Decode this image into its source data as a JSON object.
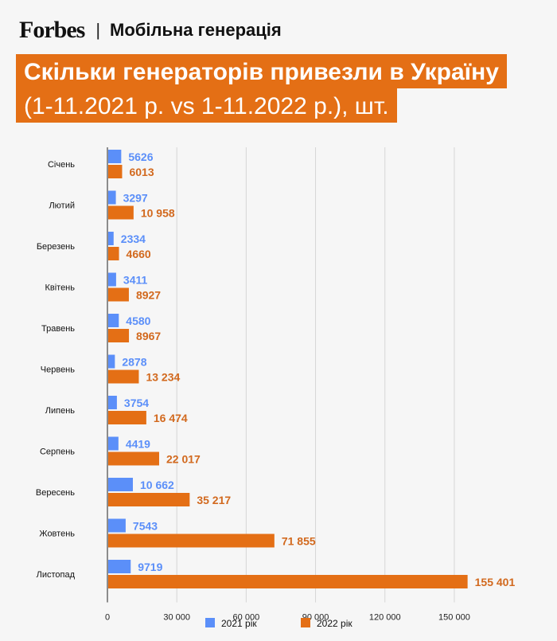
{
  "header": {
    "logo": "Forbes",
    "separator": "|",
    "section": "Мобільна генерація"
  },
  "title": {
    "line1": "Скільки генераторів привезли в Україну",
    "line2": "(1-11.2021 р. vs 1-11.2022 р.), шт."
  },
  "colors": {
    "s2021": "#5b8ff9",
    "s2022": "#e46f15",
    "label2021": "#5b8ff9",
    "label2022": "#d2691e",
    "grid": "#d5d5d5"
  },
  "chart_data": {
    "type": "bar",
    "orientation": "horizontal",
    "title": "Скільки генераторів привезли в Україну (1-11.2021 р. vs 1-11.2022 р.), шт.",
    "categories": [
      "Січень",
      "Лютий",
      "Березень",
      "Квітень",
      "Травень",
      "Червень",
      "Липень",
      "Серпень",
      "Вересень",
      "Жовтень",
      "Листопад"
    ],
    "series": [
      {
        "name": "2021 рік",
        "values": [
          5626,
          3297,
          2334,
          3411,
          4580,
          2878,
          3754,
          4419,
          10662,
          7543,
          9719
        ],
        "labels": [
          "5626",
          "3297",
          "2334",
          "3411",
          "4580",
          "2878",
          "3754",
          "4419",
          "10 662",
          "7543",
          "9719"
        ]
      },
      {
        "name": "2022 рік",
        "values": [
          6013,
          10958,
          4660,
          8927,
          8967,
          13234,
          16474,
          22017,
          35217,
          71855,
          155401
        ],
        "labels": [
          "6013",
          "10 958",
          "4660",
          "8927",
          "8967",
          "13 234",
          "16 474",
          "22 017",
          "35 217",
          "71 855",
          "155 401"
        ]
      }
    ],
    "xlim": [
      0,
      160000
    ],
    "ticks": [
      0,
      30000,
      60000,
      90000,
      120000,
      150000
    ],
    "tick_labels": [
      "0",
      "30 000",
      "60 000",
      "90 000",
      "120 000",
      "150 000"
    ],
    "grid": true,
    "legend": "bottom-center"
  }
}
